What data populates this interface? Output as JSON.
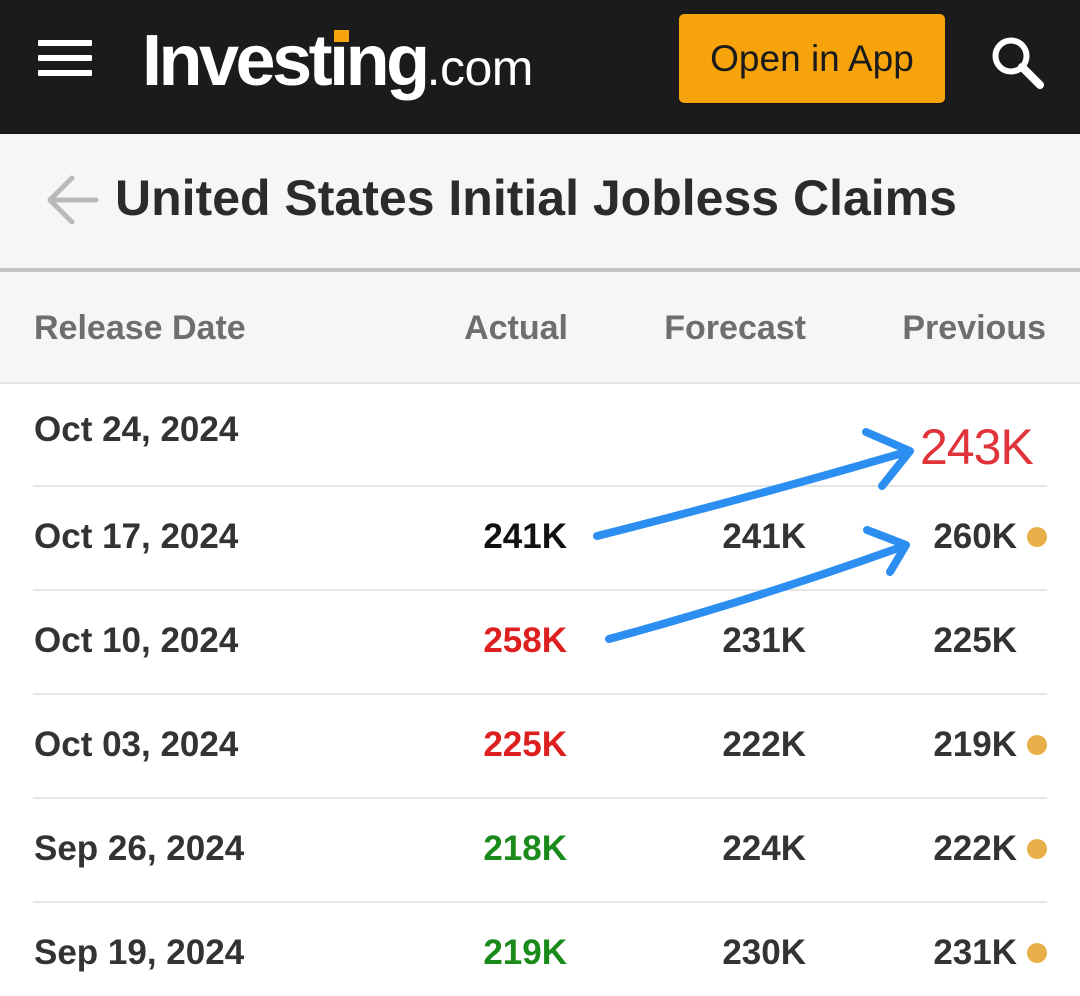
{
  "header": {
    "logo_main": "Investing",
    "logo_suffix": ".com",
    "open_app_label": "Open in App",
    "menu_icon": "hamburger-menu-icon",
    "search_icon": "search-icon",
    "colors": {
      "bar_background": "#1b1b1b",
      "accent": "#f7a30c"
    }
  },
  "title_bar": {
    "back_icon": "back-arrow-icon",
    "title": "United States Initial Jobless Claims"
  },
  "table": {
    "columns": {
      "release_date": "Release Date",
      "actual": "Actual",
      "forecast": "Forecast",
      "previous": "Previous"
    },
    "rows": [
      {
        "date": "Oct 24, 2024",
        "actual": "",
        "actual_status": "neutral",
        "forecast": "",
        "previous": "",
        "revised_dot": false
      },
      {
        "date": "Oct 17, 2024",
        "actual": "241K",
        "actual_status": "neutral",
        "forecast": "241K",
        "previous": "260K",
        "revised_dot": true
      },
      {
        "date": "Oct 10, 2024",
        "actual": "258K",
        "actual_status": "worse",
        "forecast": "231K",
        "previous": "225K",
        "revised_dot": false
      },
      {
        "date": "Oct 03, 2024",
        "actual": "225K",
        "actual_status": "worse",
        "forecast": "222K",
        "previous": "219K",
        "revised_dot": true
      },
      {
        "date": "Sep 26, 2024",
        "actual": "218K",
        "actual_status": "better",
        "forecast": "224K",
        "previous": "222K",
        "revised_dot": true
      },
      {
        "date": "Sep 19, 2024",
        "actual": "219K",
        "actual_status": "better",
        "forecast": "230K",
        "previous": "231K",
        "revised_dot": true
      }
    ],
    "status_colors": {
      "neutral": "#111111",
      "worse": "#dd1f1f",
      "better": "#1a8a1a",
      "revised_dot": "#e9b04a"
    }
  },
  "annotation": {
    "handwritten_value": "243K",
    "value_color": "#e0333a",
    "arrow_color": "#2b8ef0"
  }
}
